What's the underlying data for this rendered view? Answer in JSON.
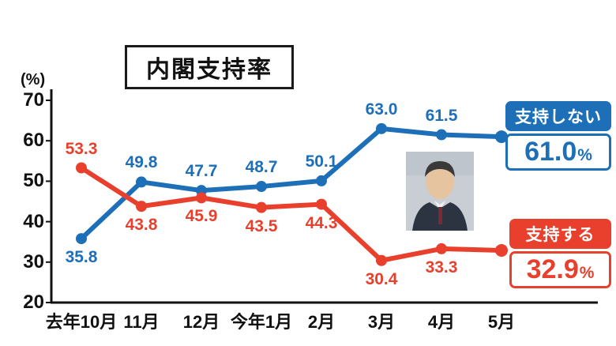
{
  "title": "内閣支持率",
  "y_unit": "(%)",
  "legend_boxes": {
    "disapprove": {
      "label": "支持しない",
      "value": "61.0",
      "unit": "%"
    },
    "approve": {
      "label": "支持する",
      "value": "32.9",
      "unit": "%"
    }
  },
  "colors": {
    "blue": "#1d6fb8",
    "red": "#e8402d",
    "axis": "#111111"
  },
  "chart_data": {
    "type": "line",
    "title": "内閣支持率",
    "ylabel": "(%)",
    "ylim": [
      20,
      70
    ],
    "yticks": [
      70,
      60,
      50,
      40,
      30,
      20
    ],
    "grid": false,
    "legend_position": "right",
    "categories": [
      "去年10月",
      "11月",
      "12月",
      "今年1月",
      "2月",
      "3月",
      "4月",
      "5月"
    ],
    "series": [
      {
        "name": "支持しない",
        "color": "#1d6fb8",
        "values": [
          35.8,
          49.8,
          47.7,
          48.7,
          50.1,
          63.0,
          61.5,
          61.0
        ],
        "label_sides": [
          "below",
          "above",
          "above",
          "above",
          "above",
          "above",
          "above",
          null
        ]
      },
      {
        "name": "支持する",
        "color": "#e8402d",
        "values": [
          53.3,
          43.8,
          45.9,
          43.5,
          44.3,
          30.4,
          33.3,
          32.9
        ],
        "label_sides": [
          "above",
          "below",
          "below",
          "below",
          "below",
          "below",
          "below",
          null
        ]
      }
    ]
  }
}
